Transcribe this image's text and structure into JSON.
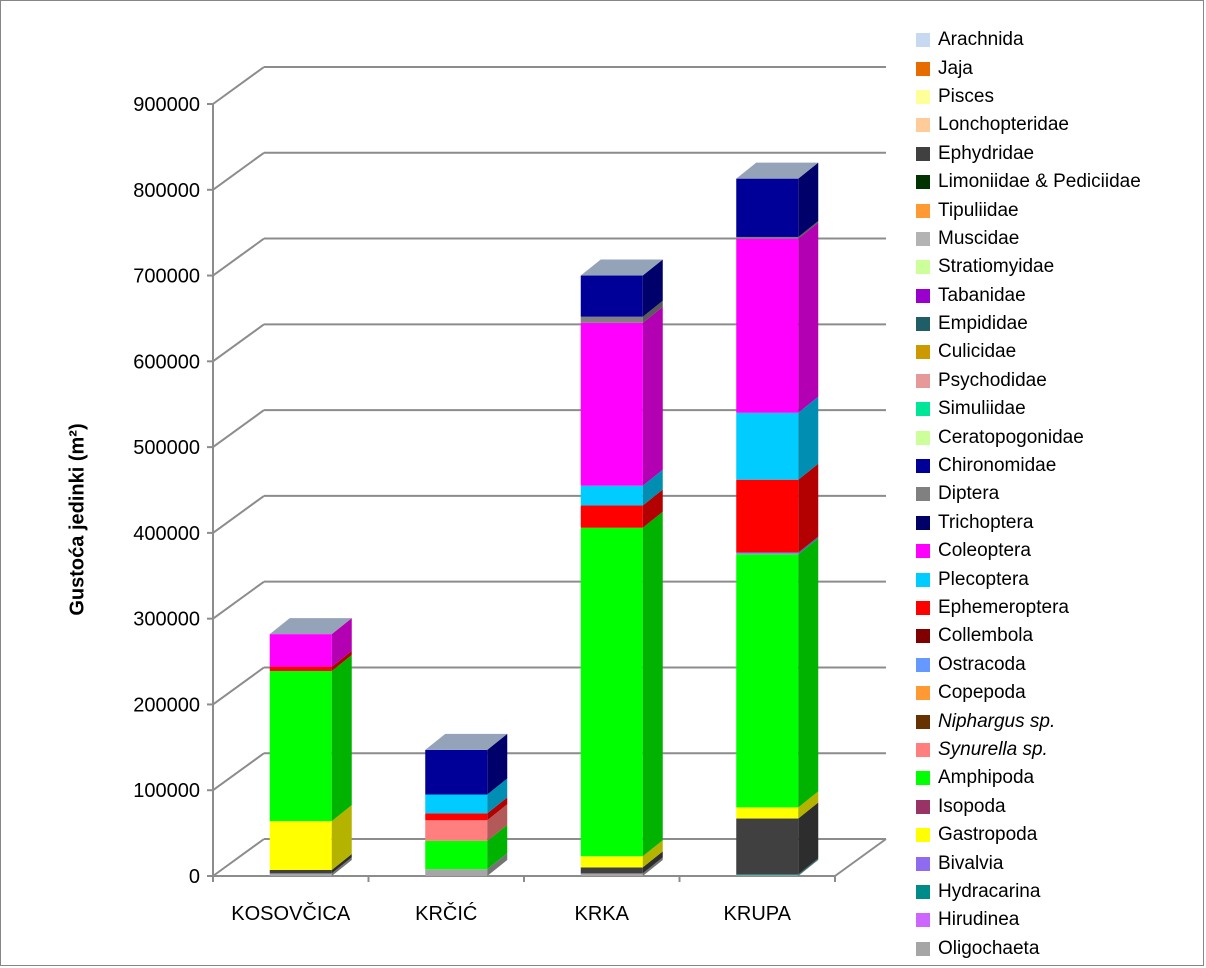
{
  "chart_data": {
    "type": "bar",
    "stacked": true,
    "three_d": true,
    "ylabel": "Gustoća jedinki (m²)",
    "ylim": [
      0,
      900000
    ],
    "y_ticks": [
      "0",
      "100000",
      "200000",
      "300000",
      "400000",
      "500000",
      "600000",
      "700000",
      "800000",
      "900000"
    ],
    "grid": true,
    "legend_position": "right",
    "categories": [
      "KOSOVČICA",
      "KRČIĆ",
      "KRKA",
      "KRUPA"
    ],
    "series": [
      {
        "name": "Oligochaeta",
        "color": "#a6a6a6",
        "values": [
          3000,
          8000,
          3000,
          1000
        ]
      },
      {
        "name": "Hirudinea",
        "color": "#cc66ff",
        "values": [
          0,
          0,
          0,
          0
        ]
      },
      {
        "name": "Hydracarina",
        "color": "#008b8b",
        "values": [
          0,
          0,
          0,
          1000
        ]
      },
      {
        "name": "Bivalvia",
        "color": "#8f6bf0",
        "values": [
          0,
          0,
          0,
          0
        ]
      },
      {
        "name": "Gastropoda",
        "color": "#ffff00",
        "values": [
          57000,
          0,
          13000,
          13000
        ]
      },
      {
        "name": "Isopoda",
        "color": "#993366",
        "values": [
          0,
          0,
          0,
          0
        ]
      },
      {
        "name": "Amphipoda",
        "color": "#00ff00",
        "values": [
          175000,
          33000,
          383000,
          295000
        ]
      },
      {
        "name": "Synurella sp.",
        "color": "#ff7f7f",
        "italic": true,
        "values": [
          0,
          24000,
          0,
          0
        ]
      },
      {
        "name": "Niphargus sp.",
        "color": "#663300",
        "italic": true,
        "values": [
          0,
          0,
          0,
          0
        ]
      },
      {
        "name": "Copepoda",
        "color": "#ff9933",
        "values": [
          0,
          0,
          0,
          0
        ]
      },
      {
        "name": "Ostracoda",
        "color": "#6699ff",
        "values": [
          0,
          0,
          0,
          2000
        ]
      },
      {
        "name": "Collembola",
        "color": "#800000",
        "values": [
          0,
          0,
          0,
          0
        ]
      },
      {
        "name": "Ephemeroptera",
        "color": "#ff0000",
        "values": [
          5000,
          8000,
          26000,
          85000
        ]
      },
      {
        "name": "Plecoptera",
        "color": "#00ccff",
        "values": [
          0,
          22000,
          23000,
          78000
        ]
      },
      {
        "name": "Coleoptera",
        "color": "#ff00ff",
        "values": [
          38000,
          0,
          190000,
          203000
        ]
      },
      {
        "name": "Trichoptera",
        "color": "#000066",
        "values": [
          0,
          0,
          0,
          0
        ]
      },
      {
        "name": "Diptera",
        "color": "#808080",
        "values": [
          0,
          0,
          7000,
          2000
        ]
      },
      {
        "name": "Chironomidae",
        "color": "#000099",
        "values": [
          0,
          52000,
          48000,
          68000
        ]
      },
      {
        "name": "Ceratopogonidae",
        "color": "#ccff99",
        "values": [
          0,
          0,
          0,
          0
        ]
      },
      {
        "name": "Simuliidae",
        "color": "#00e699",
        "values": [
          0,
          0,
          0,
          0
        ]
      },
      {
        "name": "Psychodidae",
        "color": "#e69999",
        "values": [
          0,
          0,
          0,
          0
        ]
      },
      {
        "name": "Culicidae",
        "color": "#cc9900",
        "values": [
          0,
          0,
          0,
          0
        ]
      },
      {
        "name": "Empididae",
        "color": "#1f5e66",
        "values": [
          0,
          0,
          0,
          0
        ]
      },
      {
        "name": "Tabanidae",
        "color": "#9900cc",
        "values": [
          0,
          0,
          0,
          0
        ]
      },
      {
        "name": "Stratiomyidae",
        "color": "#ccff99",
        "values": [
          0,
          0,
          0,
          0
        ]
      },
      {
        "name": "Muscidae",
        "color": "#b3b3b3",
        "values": [
          0,
          0,
          0,
          0
        ]
      },
      {
        "name": "Tipuliidae",
        "color": "#ff9933",
        "values": [
          0,
          0,
          0,
          0
        ]
      },
      {
        "name": "Limoniidae & Pediciidae",
        "color": "#003300",
        "values": [
          0,
          0,
          0,
          0
        ]
      },
      {
        "name": "Ephydridae",
        "color": "#404040",
        "values": [
          4000,
          0,
          7000,
          65000
        ]
      },
      {
        "name": "Lonchopteridae",
        "color": "#ffcc99",
        "values": [
          0,
          0,
          0,
          0
        ]
      },
      {
        "name": "Pisces",
        "color": "#ffff99",
        "values": [
          0,
          0,
          0,
          0
        ]
      },
      {
        "name": "Jaja",
        "color": "#e66c00",
        "values": [
          0,
          0,
          0,
          0
        ]
      },
      {
        "name": "Arachnida",
        "color": "#c6d9f1",
        "values": [
          0,
          0,
          0,
          0
        ]
      }
    ],
    "stack_order": [
      "Oligochaeta",
      "Hirudinea",
      "Hydracarina",
      "Bivalvia",
      "Ephydridae",
      "Gastropoda",
      "Isopoda",
      "Amphipoda",
      "Synurella sp.",
      "Niphargus sp.",
      "Copepoda",
      "Ostracoda",
      "Collembola",
      "Ephemeroptera",
      "Plecoptera",
      "Coleoptera",
      "Trichoptera",
      "Diptera",
      "Chironomidae",
      "Ceratopogonidae",
      "Simuliidae",
      "Psychodidae",
      "Culicidae",
      "Empididae",
      "Tabanidae",
      "Stratiomyidae",
      "Muscidae",
      "Tipuliidae",
      "Limoniidae & Pediciidae",
      "Lonchopteridae",
      "Pisces",
      "Jaja",
      "Arachnida"
    ],
    "legend_order": [
      "Arachnida",
      "Jaja",
      "Pisces",
      "Lonchopteridae",
      "Ephydridae",
      "Limoniidae & Pediciidae",
      "Tipuliidae",
      "Muscidae",
      "Stratiomyidae",
      "Tabanidae",
      "Empididae",
      "Culicidae",
      "Psychodidae",
      "Simuliidae",
      "Ceratopogonidae",
      "Chironomidae",
      "Diptera",
      "Trichoptera",
      "Coleoptera",
      "Plecoptera",
      "Ephemeroptera",
      "Collembola",
      "Ostracoda",
      "Copepoda",
      "Niphargus sp.",
      "Synurella sp.",
      "Amphipoda",
      "Isopoda",
      "Gastropoda",
      "Bivalvia",
      "Hydracarina",
      "Hirudinea",
      "Oligochaeta"
    ]
  }
}
